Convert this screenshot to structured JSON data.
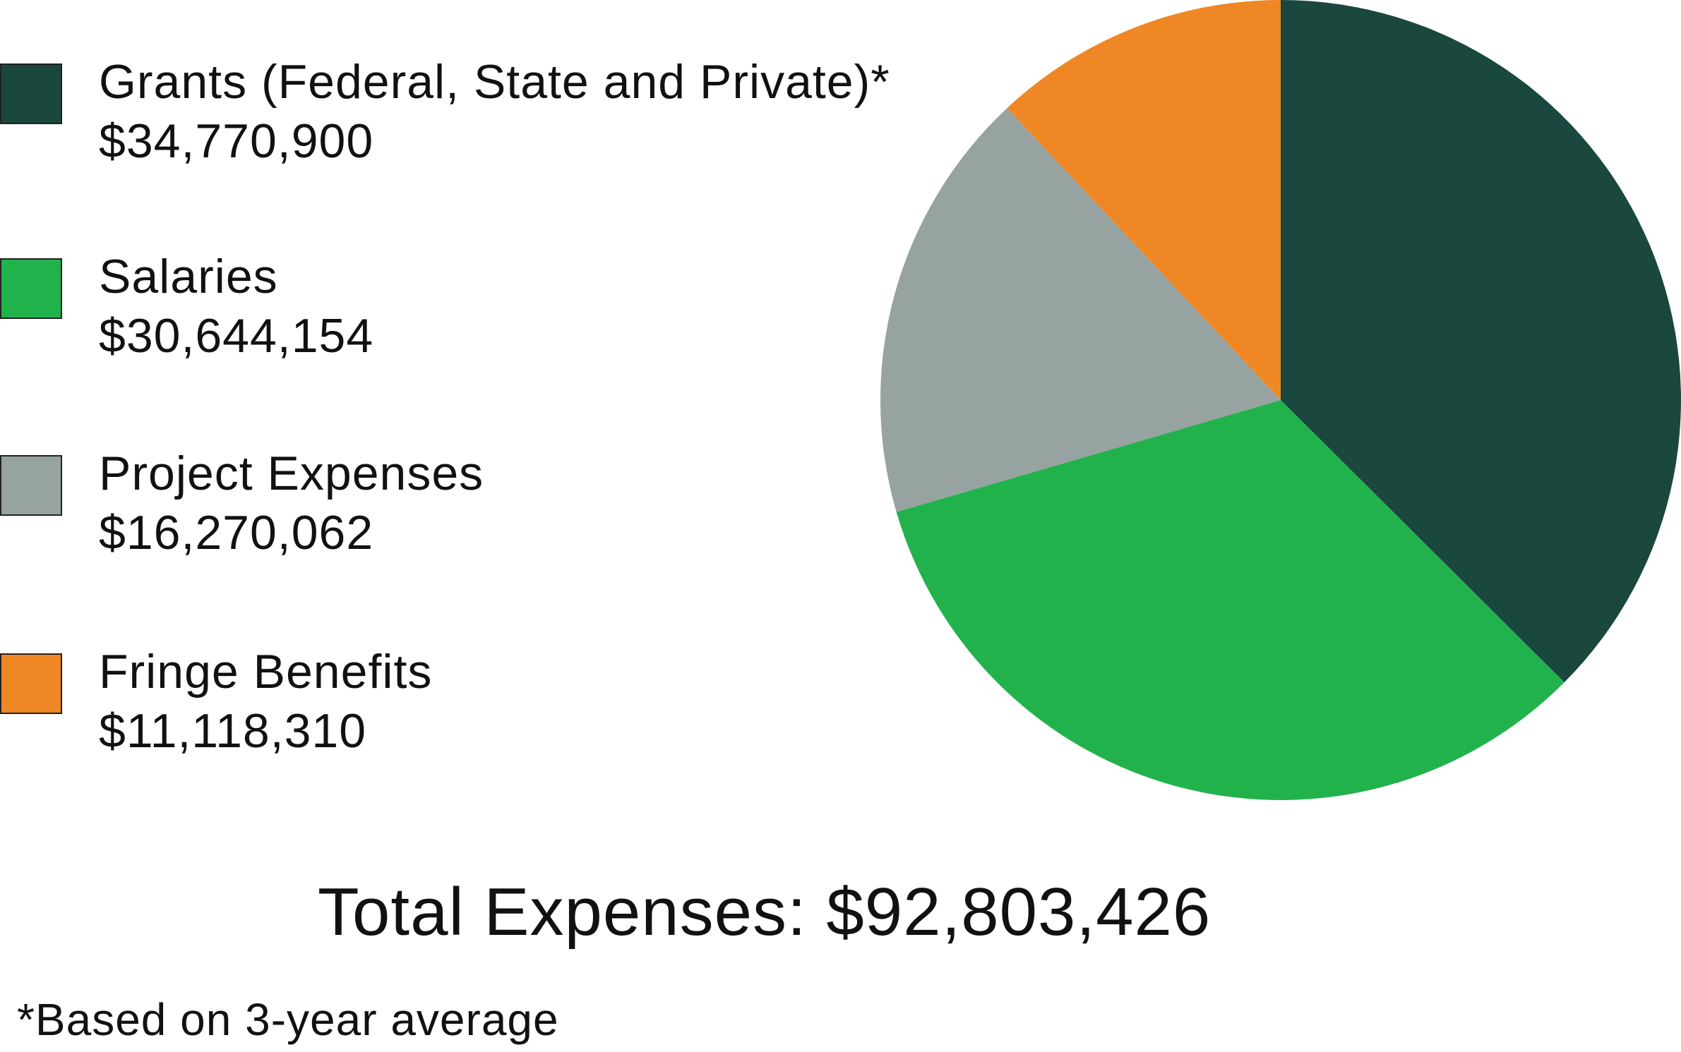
{
  "chart_data": {
    "type": "pie",
    "title": "Total Expenses: $92,803,426",
    "footnote": "*Based on 3-year average",
    "legend_position": "left",
    "slices": [
      {
        "label": "Grants (Federal, State and Private)*",
        "value_label": "$34,770,900",
        "value": 34770900,
        "color": "#1a473e"
      },
      {
        "label": "Salaries",
        "value_label": "$30,644,154",
        "value": 30644154,
        "color": "#22b24c"
      },
      {
        "label": "Project Expenses",
        "value_label": "$16,270,062",
        "value": 16270062,
        "color": "#97a3a0"
      },
      {
        "label": "Fringe Benefits",
        "value_label": "$11,118,310",
        "value": 11118310,
        "color": "#ef8724"
      }
    ]
  }
}
